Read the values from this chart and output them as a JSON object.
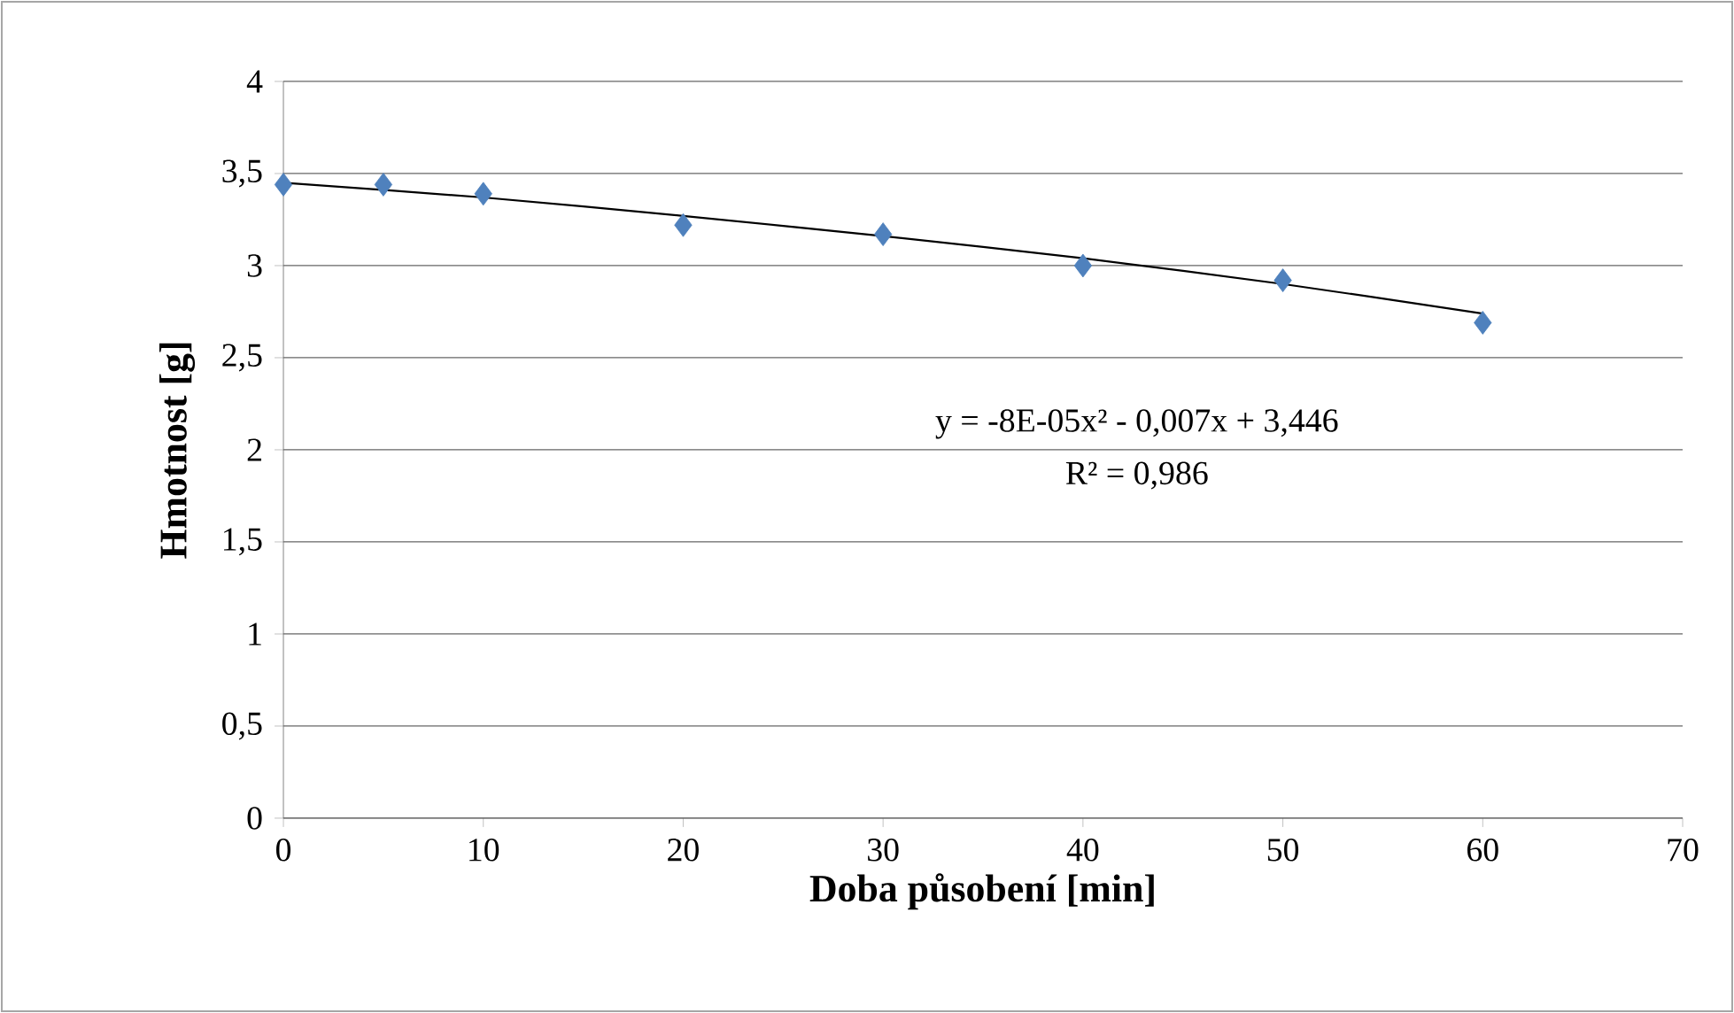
{
  "chart_data": {
    "type": "scatter",
    "xlabel": "Doba působení [min]",
    "ylabel": "Hmotnost [g]",
    "xlim": [
      0,
      70
    ],
    "xticks": [
      0,
      10,
      20,
      30,
      40,
      50,
      60,
      70
    ],
    "ylim": [
      0,
      4
    ],
    "yticks": [
      0,
      {
        "value": 0.5,
        "label": "0,5"
      },
      1,
      {
        "value": 1.5,
        "label": "1,5"
      },
      2,
      {
        "value": 2.5,
        "label": "2,5"
      },
      3,
      {
        "value": 3.5,
        "label": "3,5"
      },
      4
    ],
    "grid": "y",
    "marker": "diamond",
    "series": [
      {
        "color": "#4f81bd",
        "x": [
          0,
          5,
          10,
          20,
          30,
          40,
          50,
          60
        ],
        "values": [
          3.44,
          3.44,
          3.39,
          3.22,
          3.17,
          3.0,
          2.92,
          2.69
        ]
      },
      {
        "type": "line",
        "marker": "none",
        "color": "#000000",
        "x": [
          0,
          10,
          20,
          30,
          40,
          50,
          60
        ],
        "values": [
          3.45,
          3.37,
          3.27,
          3.16,
          3.04,
          2.9,
          2.74
        ]
      }
    ],
    "annotations": [
      "y = -8E-05x² - 0,007x + 3,446",
      "R² = 0,986"
    ]
  }
}
